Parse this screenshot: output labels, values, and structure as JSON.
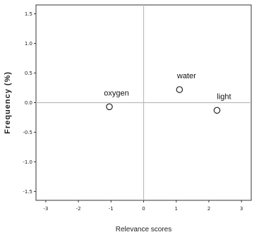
{
  "chart_data": {
    "type": "scatter",
    "xlabel": "Relevance scores",
    "ylabel": "Frequency (%)",
    "xlim": [
      -3.3,
      3.3
    ],
    "ylim": [
      -1.65,
      1.65
    ],
    "x_ticks": [
      -3,
      -2,
      -1,
      0,
      1,
      2,
      3
    ],
    "x_tick_labels": [
      "-3",
      "-2",
      "-1",
      "0",
      "1",
      "2",
      "3"
    ],
    "y_ticks": [
      1.5,
      1.0,
      0.5,
      0.0,
      -0.5,
      -1.0,
      -1.5
    ],
    "y_tick_labels": [
      "1.5",
      "1.0",
      "0.5",
      "0.0",
      "-0.5",
      "-1.0",
      "-1.5"
    ],
    "reference_lines": {
      "x": 0,
      "y": 0
    },
    "grid": false,
    "points": [
      {
        "label": "oxygen",
        "x": -1.05,
        "y": -0.07
      },
      {
        "label": "water",
        "x": 1.1,
        "y": 0.22
      },
      {
        "label": "light",
        "x": 2.25,
        "y": -0.13
      }
    ]
  }
}
